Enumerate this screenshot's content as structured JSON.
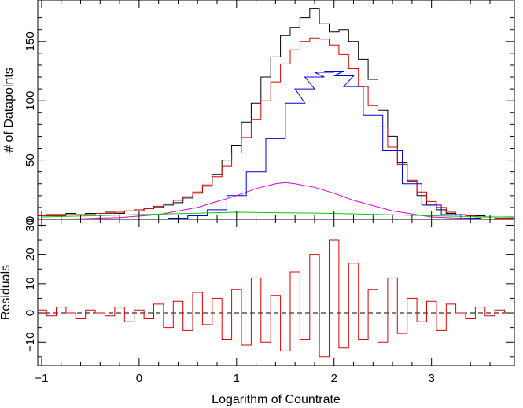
{
  "chart_data": [
    {
      "type": "line",
      "panel": "top",
      "title": "",
      "xlabel": "",
      "ylabel": "# of Datapoints",
      "xlim": [
        -1.04,
        3.85
      ],
      "ylim": [
        0,
        185
      ],
      "yticks": [
        0,
        50,
        100,
        150
      ],
      "ytick_labels": [
        "0",
        "50",
        "100",
        "150"
      ],
      "grid": false,
      "legend": "none",
      "colors": {
        "data": "#000000",
        "total_model": "#dd0000",
        "component_1": "#0000dd",
        "component_2": "#dd00dd",
        "component_3": "#00cc00"
      },
      "series": [
        {
          "role": "data histogram",
          "style": "step",
          "x": [
            -1.0,
            -0.9,
            -0.8,
            -0.7,
            -0.6,
            -0.5,
            -0.4,
            -0.3,
            -0.2,
            -0.1,
            0.0,
            0.1,
            0.2,
            0.3,
            0.4,
            0.5,
            0.6,
            0.7,
            0.8,
            0.9,
            1.0,
            1.1,
            1.2,
            1.3,
            1.4,
            1.5,
            1.6,
            1.7,
            1.8,
            1.9,
            2.0,
            2.1,
            2.2,
            2.3,
            2.4,
            2.5,
            2.6,
            2.7,
            2.8,
            2.9,
            3.0,
            3.1,
            3.2,
            3.3,
            3.4,
            3.5,
            3.6,
            3.7,
            3.8
          ],
          "y": [
            3,
            4,
            4,
            5,
            4,
            5,
            5,
            6,
            5,
            7,
            7,
            9,
            10,
            12,
            14,
            18,
            22,
            28,
            38,
            50,
            62,
            82,
            98,
            120,
            137,
            155,
            162,
            170,
            178,
            165,
            158,
            160,
            150,
            135,
            118,
            92,
            70,
            48,
            32,
            20,
            12,
            8,
            5,
            4,
            3,
            3,
            2,
            2,
            2
          ]
        },
        {
          "role": "total model",
          "style": "step",
          "x": [
            -1.0,
            -0.9,
            -0.8,
            -0.7,
            -0.6,
            -0.5,
            -0.4,
            -0.3,
            -0.2,
            -0.1,
            0.0,
            0.1,
            0.2,
            0.3,
            0.4,
            0.5,
            0.6,
            0.7,
            0.8,
            0.9,
            1.0,
            1.1,
            1.2,
            1.3,
            1.4,
            1.5,
            1.6,
            1.7,
            1.8,
            1.9,
            2.0,
            2.1,
            2.2,
            2.3,
            2.4,
            2.5,
            2.6,
            2.7,
            2.8,
            2.9,
            3.0,
            3.1,
            3.2,
            3.3,
            3.4,
            3.5,
            3.6,
            3.7,
            3.8
          ],
          "y": [
            3,
            3,
            3,
            4,
            4,
            4,
            5,
            5,
            6,
            7,
            8,
            9,
            11,
            13,
            16,
            19,
            23,
            29,
            36,
            45,
            56,
            69,
            84,
            100,
            116,
            131,
            143,
            150,
            153,
            152,
            147,
            139,
            127,
            112,
            96,
            78,
            61,
            46,
            33,
            23,
            15,
            10,
            6,
            4,
            3,
            2,
            2,
            1,
            1
          ]
        },
        {
          "role": "component 1",
          "style": "step",
          "x": [
            0.0,
            0.2,
            0.4,
            0.6,
            0.8,
            1.0,
            1.2,
            1.4,
            1.6,
            1.7,
            1.8,
            1.9,
            2.0,
            2.1,
            2.2,
            2.4,
            2.6,
            2.8,
            3.0,
            3.2,
            3.4,
            3.6,
            3.8
          ],
          "y": [
            0,
            0,
            1,
            3,
            8,
            20,
            40,
            68,
            98,
            110,
            120,
            124,
            125,
            121,
            112,
            88,
            58,
            30,
            12,
            4,
            1,
            0,
            0
          ]
        },
        {
          "role": "component 2",
          "style": "line",
          "x": [
            -1.0,
            -0.6,
            -0.2,
            0.2,
            0.6,
            1.0,
            1.2,
            1.4,
            1.5,
            1.6,
            1.8,
            2.0,
            2.2,
            2.6,
            3.0,
            3.4,
            3.8
          ],
          "y": [
            0,
            0.5,
            1.5,
            4,
            10,
            20,
            26,
            30,
            31,
            30,
            27,
            22,
            16,
            7,
            2,
            0.5,
            0
          ]
        },
        {
          "role": "component 3",
          "style": "line",
          "x": [
            -1.0,
            -0.5,
            0.0,
            0.5,
            1.0,
            1.5,
            2.0,
            2.5,
            3.0,
            3.5,
            3.85
          ],
          "y": [
            2,
            3,
            4,
            5,
            6,
            5.5,
            5,
            4,
            3,
            2.2,
            1.8
          ]
        }
      ]
    },
    {
      "type": "line",
      "panel": "bottom",
      "title": "",
      "xlabel": "Logarithm of Countrate",
      "ylabel": "Residuals",
      "xlim": [
        -1.04,
        3.85
      ],
      "ylim": [
        -18,
        32
      ],
      "xticks": [
        -1,
        0,
        1,
        2,
        3
      ],
      "xtick_labels": [
        "−1",
        "0",
        "1",
        "2",
        "3"
      ],
      "yticks": [
        -10,
        0,
        10,
        20,
        30
      ],
      "ytick_labels": [
        "−10",
        "0",
        "10",
        "20",
        "30"
      ],
      "grid": false,
      "legend": "none",
      "reference_line": {
        "y": 0,
        "style": "dashed"
      },
      "series": [
        {
          "role": "residuals",
          "style": "step",
          "x": [
            -1.0,
            -0.9,
            -0.8,
            -0.7,
            -0.6,
            -0.5,
            -0.4,
            -0.3,
            -0.2,
            -0.1,
            0.0,
            0.1,
            0.2,
            0.3,
            0.4,
            0.5,
            0.6,
            0.7,
            0.8,
            0.9,
            1.0,
            1.1,
            1.2,
            1.3,
            1.4,
            1.5,
            1.6,
            1.7,
            1.8,
            1.9,
            2.0,
            2.1,
            2.2,
            2.3,
            2.4,
            2.5,
            2.6,
            2.7,
            2.8,
            2.9,
            3.0,
            3.1,
            3.2,
            3.3,
            3.4,
            3.5,
            3.6,
            3.7,
            3.8
          ],
          "y": [
            1,
            -1,
            2,
            0,
            -2,
            1,
            0,
            -1,
            2,
            -3,
            1,
            -2,
            3,
            -5,
            4,
            -6,
            7,
            -4,
            5,
            -9,
            8,
            -11,
            12,
            -10,
            6,
            -13,
            14,
            -9,
            20,
            -15,
            25,
            -12,
            17,
            -9,
            8,
            -10,
            12,
            -7,
            5,
            -3,
            4,
            -6,
            3,
            0,
            -2,
            2,
            -1,
            1,
            0
          ]
        }
      ]
    }
  ]
}
